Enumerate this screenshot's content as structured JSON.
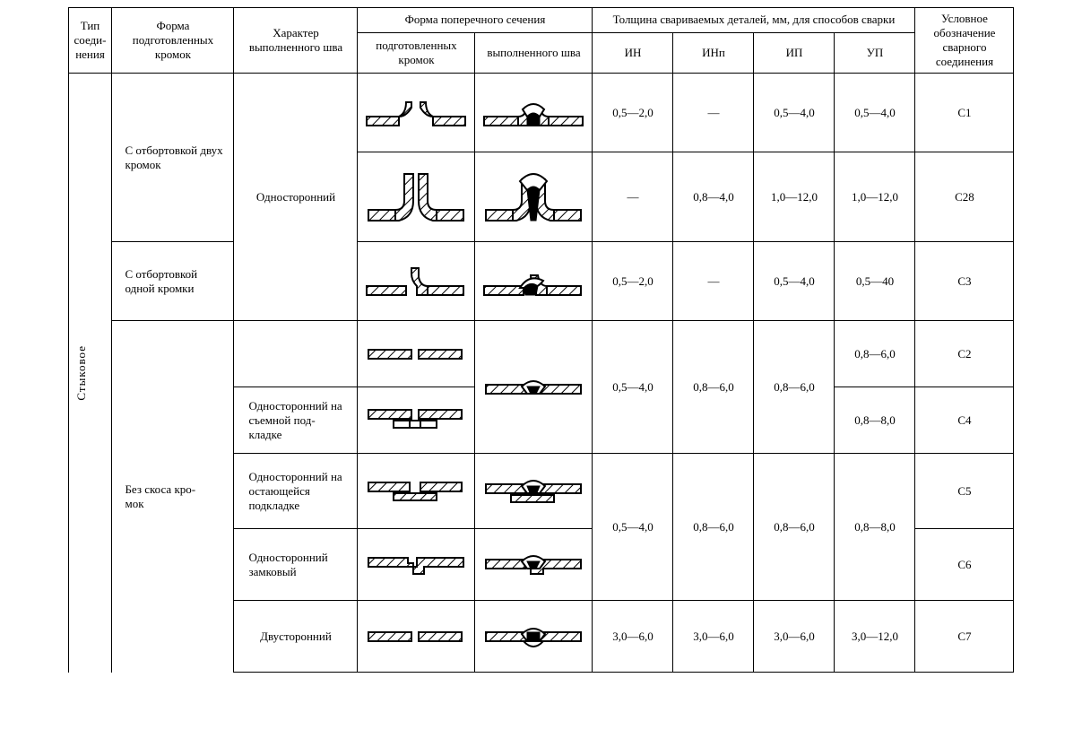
{
  "header": {
    "c1": "Тип соеди-\nнения",
    "c2": "Форма подготовленных кромок",
    "c3": "Характер выполненного шва",
    "c4": "Форма поперечного сечения",
    "c4a": "подготовленных кромок",
    "c4b": "выполненного шва",
    "c5": "Толщина свариваемых деталей, мм, для способов сварки",
    "c5a": "ИН",
    "c5b": "ИНп",
    "c5c": "ИП",
    "c5d": "УП",
    "c6": "Условное обозначение сварного соединения"
  },
  "joint_type": "Стыковое",
  "edges": {
    "two_flange": "С отбортовкой двух кромок",
    "one_flange": "С отбортовкой одной кромки",
    "no_bevel": "Без скоса кро-\nмок"
  },
  "chars": {
    "single": "Односторонний",
    "single_removable": "Односторонний на съемной под-\nкладке",
    "single_remaining": "Односторонний на остающейся подкладке",
    "single_lock": "Односторонний замковый",
    "double": "Двусторонний"
  },
  "rows": {
    "r1": {
      "in": "0,5—2,0",
      "inp": "—",
      "ip": "0,5—4,0",
      "up": "0,5—4,0",
      "code": "С1"
    },
    "r2": {
      "in": "—",
      "inp": "0,8—4,0",
      "ip": "1,0—12,0",
      "up": "1,0—12,0",
      "code": "С28"
    },
    "r3": {
      "in": "0,5—2,0",
      "inp": "—",
      "ip": "0,5—4,0",
      "up": "0,5—40",
      "code": "С3"
    },
    "r4": {
      "in": "0,5—4,0",
      "inp": "0,8—6,0",
      "ip": "0,8—6,0",
      "up": "0,8—6,0",
      "code": "С2"
    },
    "r5": {
      "up": "0,8—8,0",
      "code": "С4"
    },
    "r6": {
      "in": "0,5—4,0",
      "inp": "0,8—6,0",
      "ip": "0,8—6,0",
      "up": "0,8—8,0",
      "code": "С5"
    },
    "r7": {
      "code": "С6"
    },
    "r8": {
      "in": "3,0—6,0",
      "inp": "3,0—6,0",
      "ip": "3,0—6,0",
      "up": "3,0—12,0",
      "code": "С7"
    }
  }
}
